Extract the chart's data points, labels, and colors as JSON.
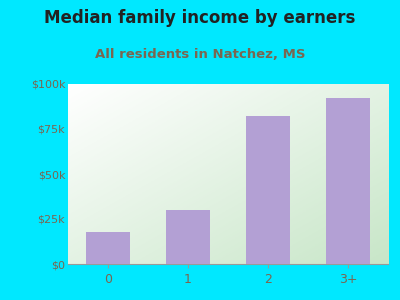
{
  "title": "Median family income by earners",
  "subtitle": "All residents in Natchez, MS",
  "categories": [
    "0",
    "1",
    "2",
    "3+"
  ],
  "values": [
    18000,
    30000,
    82000,
    92000
  ],
  "bar_color": "#b3a0d4",
  "ylim": [
    0,
    100000
  ],
  "yticks": [
    0,
    25000,
    50000,
    75000,
    100000
  ],
  "ytick_labels": [
    "$0",
    "$25k",
    "$50k",
    "$75k",
    "$100k"
  ],
  "bg_outer": "#00e8ff",
  "title_color": "#222222",
  "subtitle_color": "#7a6650",
  "tick_color": "#7a6650",
  "title_fontsize": 12,
  "subtitle_fontsize": 9.5,
  "axis_color": "#999999"
}
